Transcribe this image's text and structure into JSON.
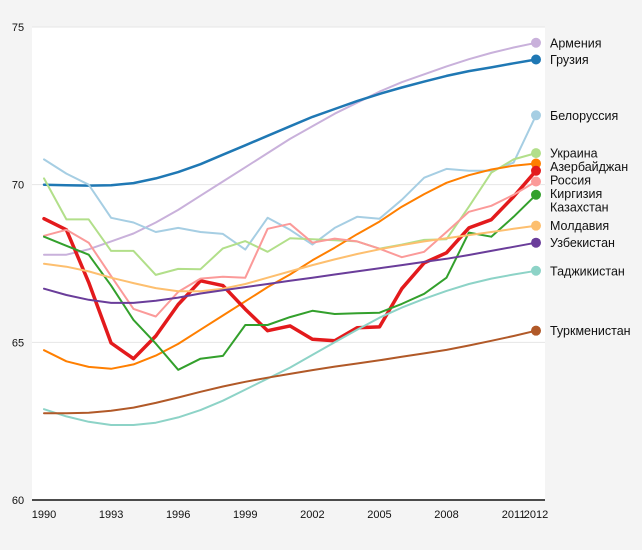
{
  "chart_data": {
    "type": "line",
    "title": "",
    "xlabel": "",
    "ylabel": "",
    "ylim": [
      60,
      75
    ],
    "yticks": [
      "60",
      "65",
      "70",
      "75"
    ],
    "xticks": [
      "1990",
      "1993",
      "1996",
      "1999",
      "2002",
      "2005",
      "2008",
      "2011",
      "2012"
    ],
    "grid": "horizontal at 65 and 70",
    "legend": "right, labels at line ends",
    "x": [
      1990,
      1991,
      1992,
      1993,
      1994,
      1995,
      1996,
      1997,
      1998,
      1999,
      2000,
      2001,
      2002,
      2003,
      2004,
      2005,
      2006,
      2007,
      2008,
      2009,
      2010,
      2011,
      2012
    ],
    "series": [
      {
        "name": "Армения",
        "color": "#c9b1db",
        "width": 2,
        "values": [
          67.78,
          67.78,
          67.95,
          68.2,
          68.45,
          68.8,
          69.2,
          69.65,
          70.1,
          70.55,
          71.0,
          71.45,
          71.85,
          72.25,
          72.6,
          72.95,
          73.25,
          73.5,
          73.75,
          73.98,
          74.18,
          74.35,
          74.5
        ]
      },
      {
        "name": "Грузия",
        "color": "#1f78b4",
        "width": 2.5,
        "values": [
          70.0,
          69.98,
          69.97,
          69.98,
          70.05,
          70.2,
          70.4,
          70.65,
          70.95,
          71.25,
          71.55,
          71.85,
          72.15,
          72.4,
          72.65,
          72.88,
          73.08,
          73.27,
          73.45,
          73.6,
          73.72,
          73.85,
          73.97
        ]
      },
      {
        "name": "Белоруссия",
        "color": "#a6cee3",
        "width": 2,
        "values": [
          70.8,
          70.35,
          70.0,
          68.95,
          68.8,
          68.5,
          68.63,
          68.5,
          68.44,
          67.94,
          68.95,
          68.57,
          68.1,
          68.63,
          68.98,
          68.92,
          69.52,
          70.22,
          70.5,
          70.44,
          70.44,
          70.7,
          72.2
        ]
      },
      {
        "name": "Украина",
        "color": "#b2df8a",
        "width": 2,
        "values": [
          70.2,
          68.9,
          68.9,
          67.9,
          67.9,
          67.14,
          67.33,
          67.32,
          67.98,
          68.21,
          67.87,
          68.3,
          68.27,
          68.24,
          68.2,
          67.97,
          68.1,
          68.25,
          68.27,
          69.3,
          70.38,
          70.8,
          71.0
        ]
      },
      {
        "name": "Азербайджан",
        "color": "#ff7f00",
        "width": 2,
        "values": [
          64.75,
          64.4,
          64.22,
          64.16,
          64.3,
          64.58,
          64.95,
          65.4,
          65.85,
          66.3,
          66.75,
          67.15,
          67.6,
          68.0,
          68.43,
          68.83,
          69.3,
          69.7,
          70.06,
          70.3,
          70.48,
          70.6,
          70.67
        ]
      },
      {
        "name": "Россия",
        "color": "#e31a1c",
        "width": 3.5,
        "values": [
          68.92,
          68.57,
          66.9,
          64.98,
          64.48,
          65.2,
          66.2,
          66.95,
          66.8,
          66.05,
          65.37,
          65.52,
          65.1,
          65.05,
          65.46,
          65.49,
          66.7,
          67.52,
          67.84,
          68.63,
          68.89,
          69.62,
          70.44
        ]
      },
      {
        "name": "Киргизия",
        "color": "#fb9a99",
        "width": 2,
        "values": [
          68.38,
          68.57,
          68.16,
          67.1,
          66.06,
          65.82,
          66.6,
          67.02,
          67.08,
          67.05,
          68.6,
          68.76,
          68.16,
          68.29,
          68.2,
          67.97,
          67.7,
          67.87,
          68.5,
          69.14,
          69.33,
          69.68,
          70.1
        ]
      },
      {
        "name": "Казахстан",
        "color": "#33a02c",
        "width": 2,
        "values": [
          68.35,
          68.06,
          67.78,
          66.8,
          65.71,
          64.96,
          64.13,
          64.48,
          64.57,
          65.55,
          65.55,
          65.8,
          66.0,
          65.9,
          65.92,
          65.94,
          66.22,
          66.54,
          67.05,
          68.48,
          68.35,
          68.98,
          69.68
        ]
      },
      {
        "name": "Молдавия",
        "color": "#fdbf6f",
        "width": 2,
        "values": [
          67.49,
          67.4,
          67.25,
          67.05,
          66.88,
          66.72,
          66.62,
          66.62,
          66.7,
          66.85,
          67.05,
          67.25,
          67.45,
          67.63,
          67.8,
          67.95,
          68.08,
          68.2,
          68.3,
          68.4,
          68.5,
          68.6,
          68.7
        ]
      },
      {
        "name": "Узбекистан",
        "color": "#6a3d9a",
        "width": 2,
        "values": [
          66.7,
          66.5,
          66.35,
          66.25,
          66.25,
          66.32,
          66.42,
          66.55,
          66.65,
          66.75,
          66.85,
          66.95,
          67.05,
          67.15,
          67.25,
          67.35,
          67.45,
          67.55,
          67.65,
          67.77,
          67.9,
          68.03,
          68.16
        ]
      },
      {
        "name": "Таджикистан",
        "color": "#8dd3c7",
        "width": 2,
        "values": [
          62.88,
          62.65,
          62.48,
          62.38,
          62.38,
          62.45,
          62.62,
          62.85,
          63.15,
          63.5,
          63.85,
          64.2,
          64.6,
          65.0,
          65.4,
          65.78,
          66.1,
          66.38,
          66.63,
          66.85,
          67.02,
          67.15,
          67.27
        ]
      },
      {
        "name": "Туркменистан",
        "color": "#b15928",
        "width": 2,
        "values": [
          62.75,
          62.75,
          62.77,
          62.83,
          62.93,
          63.08,
          63.25,
          63.43,
          63.6,
          63.75,
          63.88,
          64.0,
          64.12,
          64.23,
          64.33,
          64.43,
          64.54,
          64.65,
          64.76,
          64.9,
          65.05,
          65.2,
          65.37
        ]
      }
    ]
  }
}
